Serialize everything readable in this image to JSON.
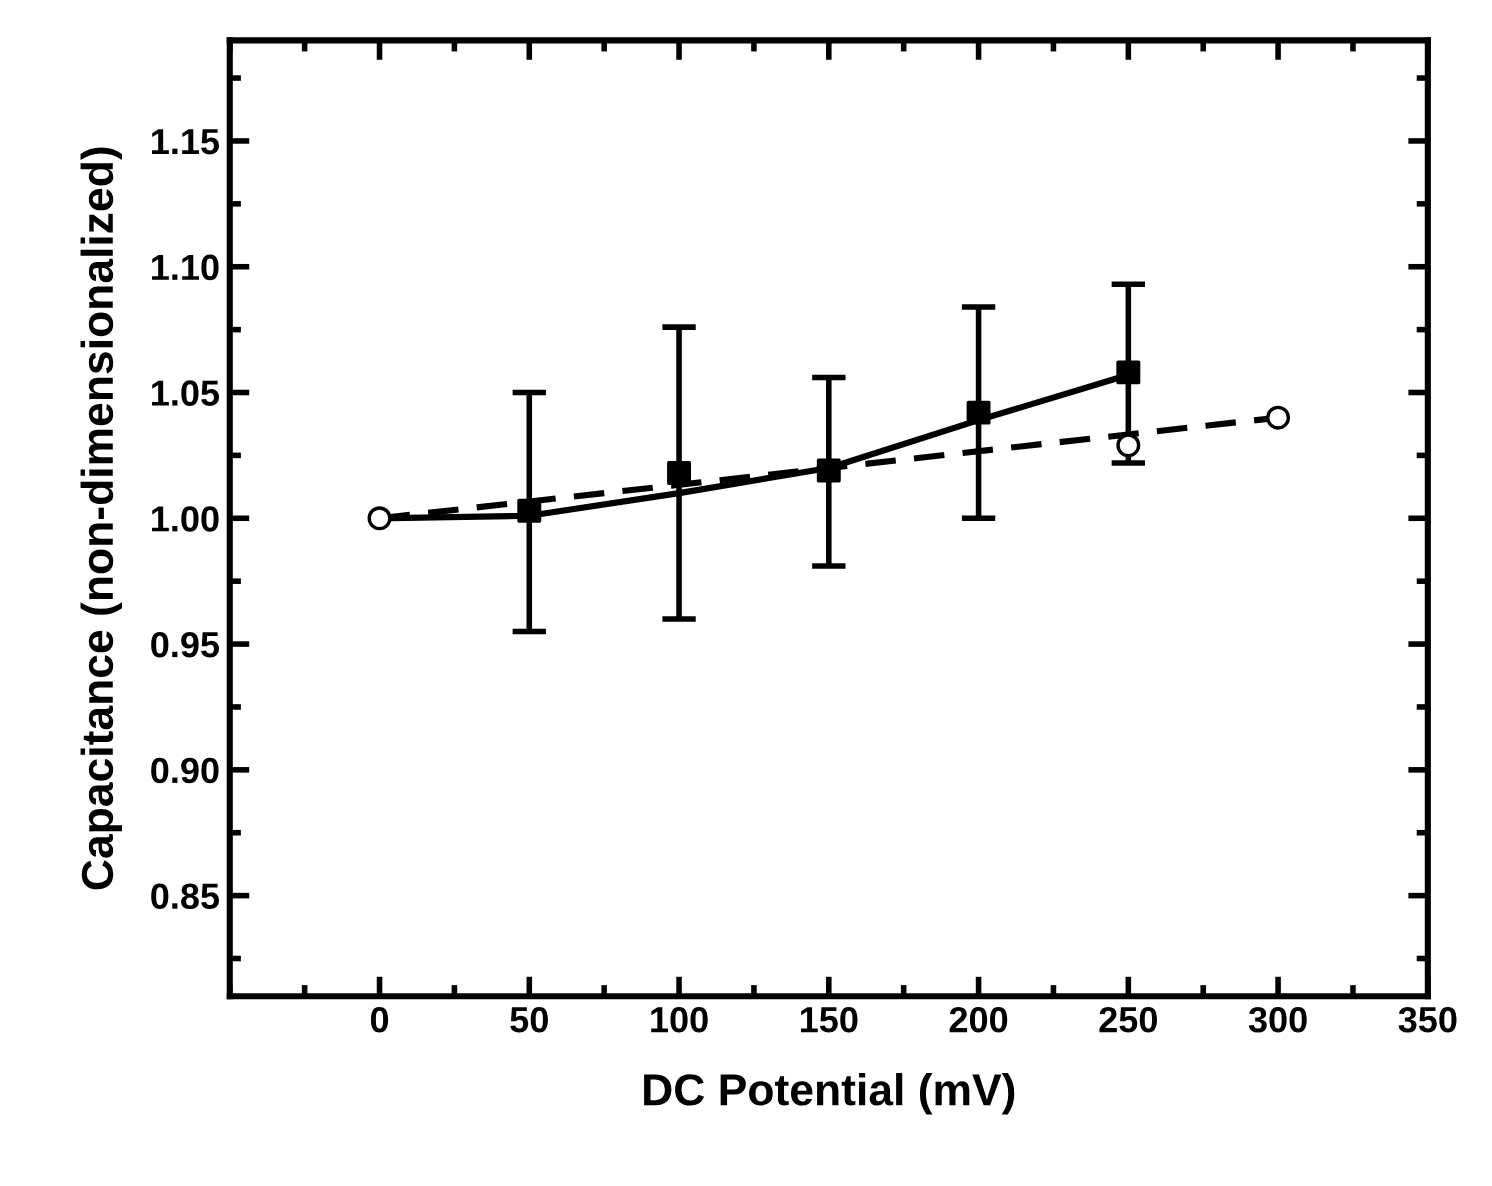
{
  "chart_data": {
    "type": "scatter",
    "xlabel": "DC Potential (mV)",
    "ylabel": "Capacitance (non-dimensionalized)",
    "xlim": [
      -50,
      350
    ],
    "xticks": [
      0,
      50,
      100,
      150,
      200,
      250,
      300,
      350
    ],
    "ylim": [
      0.81,
      1.19
    ],
    "yticks": [
      0.85,
      {
        "value": 0.9,
        "label": "0.90"
      },
      0.95,
      {
        "value": 1.0,
        "label": "1.00"
      },
      1.05,
      {
        "value": 1.1,
        "label": "1.10"
      },
      1.15
    ],
    "grid": false,
    "legend": false,
    "series": [
      {
        "color": "#000000",
        "marker": "square",
        "x": [
          50,
          100,
          150,
          200,
          250
        ],
        "values": [
          1.003,
          1.018,
          1.019,
          1.042,
          1.058
        ],
        "errors": [
          [
            0.955,
            1.05
          ],
          [
            0.96,
            1.076
          ],
          [
            0.981,
            1.056
          ],
          [
            1.0,
            1.084
          ],
          [
            1.022,
            1.093
          ]
        ]
      },
      {
        "type": "line",
        "color": "#000000",
        "marker": "none",
        "line_style": "solid",
        "x": [
          0,
          50,
          100,
          150,
          200,
          250
        ],
        "values": [
          1.0,
          1.001,
          1.01,
          1.02,
          1.039,
          1.057
        ]
      },
      {
        "type": "line",
        "color": "#000000",
        "marker": "none",
        "line_style": "dashed",
        "x": [
          0,
          300
        ],
        "values": [
          1.0,
          1.04
        ]
      },
      {
        "color": "#ffffff",
        "marker": "circle",
        "x": [
          0,
          250,
          300
        ],
        "values": [
          1.0,
          1.029,
          1.04
        ]
      }
    ]
  }
}
